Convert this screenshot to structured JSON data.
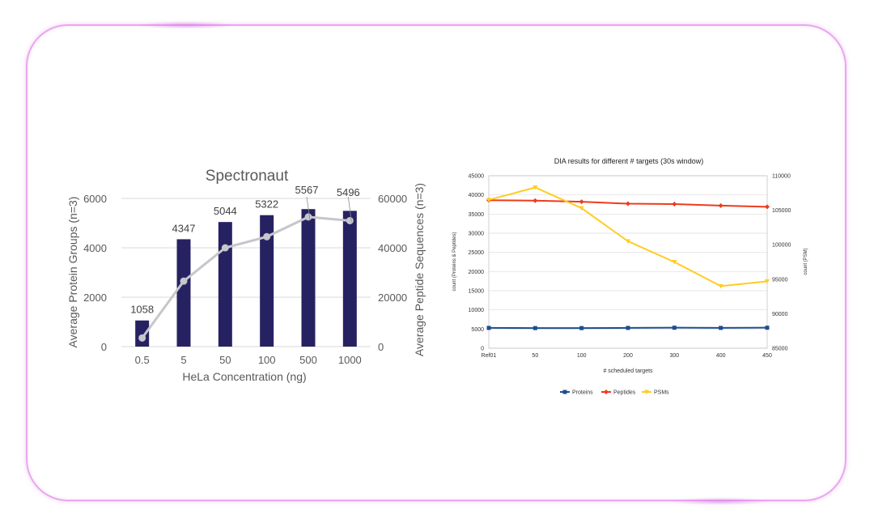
{
  "chart_data": [
    {
      "type": "bar",
      "title": "Spectronaut",
      "xlabel": "HeLa Concentration (ng)",
      "ylabel": "Average Protein Groups (n=3)",
      "y2label": "Average Peptide Sequences (n=3)",
      "categories": [
        "0.5",
        "5",
        "50",
        "100",
        "500",
        "1000"
      ],
      "ylim": [
        0,
        6000
      ],
      "y2lim": [
        0,
        60000
      ],
      "yticks": [
        "0",
        "2000",
        "4000",
        "6000"
      ],
      "y2ticks": [
        "0",
        "20000",
        "40000",
        "60000"
      ],
      "series": [
        {
          "type": "bar",
          "axis": "left",
          "values": [
            1058,
            4347,
            5044,
            5322,
            5567,
            5496
          ],
          "labels": [
            "1058",
            "4347",
            "5044",
            "5322",
            "5567",
            "5496"
          ],
          "color": "#262262"
        },
        {
          "type": "line",
          "axis": "right",
          "values": [
            3500,
            26500,
            40000,
            44500,
            52500,
            51000
          ],
          "color": "#c6c6cc"
        }
      ],
      "grid": true
    },
    {
      "type": "line",
      "title": "DIA results for different # targets (30s window)",
      "xlabel": "# scheduled targets",
      "ylabel": "count (Proteins & Peptides)",
      "y2label": "count (PSM)",
      "categories": [
        "Ref01",
        "50",
        "100",
        "200",
        "300",
        "400",
        "450"
      ],
      "ylim": [
        0,
        45000
      ],
      "y2lim": [
        85000,
        110000
      ],
      "yticks": [
        "0",
        "5000",
        "10000",
        "15000",
        "20000",
        "25000",
        "30000",
        "35000",
        "40000",
        "45000"
      ],
      "y2ticks": [
        "85000",
        "90000",
        "95000",
        "100000",
        "105000",
        "110000"
      ],
      "series": [
        {
          "name": "Proteins",
          "axis": "left",
          "values": [
            5300,
            5250,
            5250,
            5300,
            5350,
            5300,
            5350
          ],
          "color": "#1f4e8c",
          "marker": "square"
        },
        {
          "name": "Peptides",
          "axis": "left",
          "values": [
            38600,
            38500,
            38200,
            37700,
            37600,
            37200,
            36900
          ],
          "color": "#ee3b1c",
          "marker": "diamond"
        },
        {
          "name": "PSMs",
          "axis": "right",
          "values": [
            106500,
            108300,
            105300,
            100500,
            97500,
            94000,
            94700
          ],
          "color": "#ffcc22",
          "marker": "triangle"
        }
      ],
      "legend": "bottom",
      "grid": true
    }
  ]
}
